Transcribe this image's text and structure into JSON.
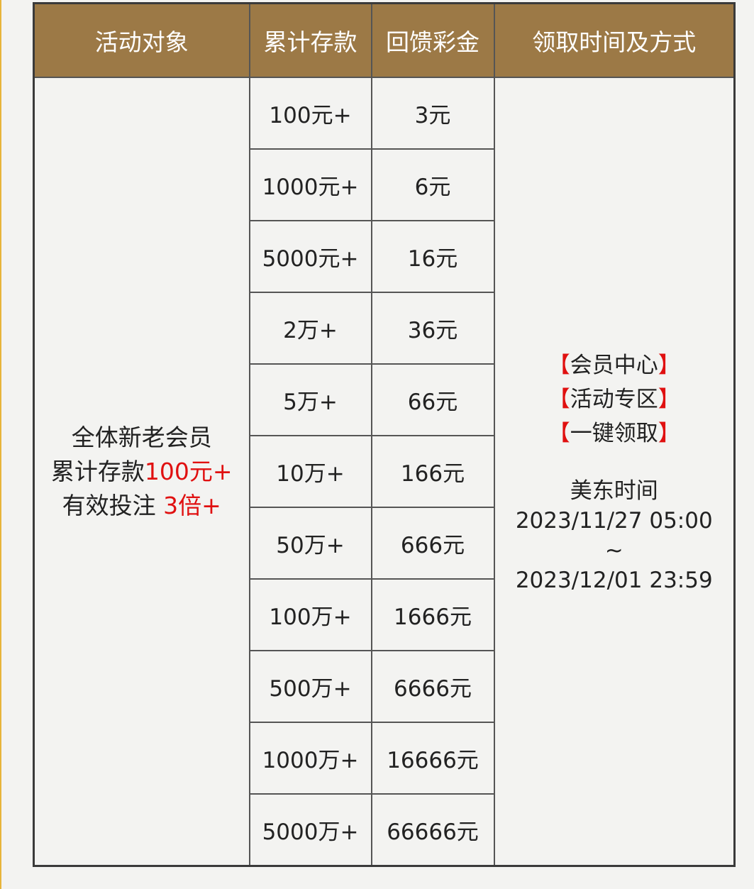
{
  "header": [
    "活动对象",
    "累计存款",
    "回馈彩金",
    "领取时间及方式"
  ],
  "target": {
    "line1": "全体新老会员",
    "line2_prefix": "累计存款",
    "line2_highlight": "100元+",
    "line3_prefix": "有效投注 ",
    "line3_highlight": "3倍+"
  },
  "rows": [
    {
      "deposit": "100元+",
      "bonus": "3元"
    },
    {
      "deposit": "1000元+",
      "bonus": "6元"
    },
    {
      "deposit": "5000元+",
      "bonus": "16元"
    },
    {
      "deposit": "2万+",
      "bonus": "36元"
    },
    {
      "deposit": "5万+",
      "bonus": "66元"
    },
    {
      "deposit": "10万+",
      "bonus": "166元"
    },
    {
      "deposit": "50万+",
      "bonus": "666元"
    },
    {
      "deposit": "100万+",
      "bonus": "1666元"
    },
    {
      "deposit": "500万+",
      "bonus": "6666元"
    },
    {
      "deposit": "1000万+",
      "bonus": "16666元"
    },
    {
      "deposit": "5000万+",
      "bonus": "66666元"
    }
  ],
  "claim": {
    "steps": [
      "会员中心",
      "活动专区",
      "一键领取"
    ],
    "bracket_open": "【",
    "bracket_close": "】",
    "timezone": "美东时间",
    "start": "2023/11/27 05:00",
    "sep": "~",
    "end": "2023/12/01 23:59"
  },
  "colors": {
    "header_bg": "#9c7946",
    "highlight": "#e01010"
  }
}
